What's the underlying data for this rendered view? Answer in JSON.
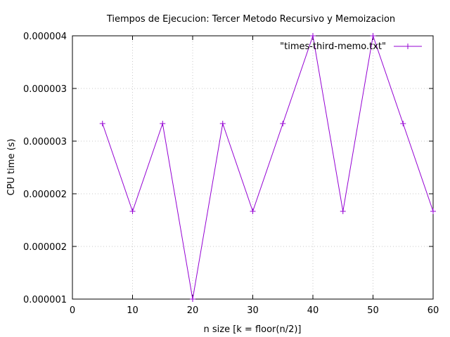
{
  "chart_data": {
    "type": "line",
    "title": "Tiempos de Ejecucion: Tercer Metodo Recursivo y Memoizacion",
    "xlabel": "n size [k = floor(n/2)]",
    "ylabel": "CPU time (s)",
    "xlim": [
      0,
      60
    ],
    "ylim": [
      1e-06,
      4e-06
    ],
    "xticks": [
      0,
      10,
      20,
      30,
      40,
      50,
      60
    ],
    "xtick_labels": [
      "0",
      "10",
      "20",
      "30",
      "40",
      "50",
      "60"
    ],
    "yticks": [
      1e-06,
      1.6e-06,
      2.2e-06,
      2.8e-06,
      3.4e-06,
      4e-06
    ],
    "ytick_labels": [
      "0.000001",
      "0.000002",
      "0.000002",
      "0.000003",
      "0.000003",
      "0.000004"
    ],
    "grid": true,
    "legend_position": "top-right",
    "series": [
      {
        "name": "\"times-third-memo.txt\"",
        "color": "#9400d3",
        "marker": "plus",
        "x": [
          5,
          10,
          15,
          20,
          25,
          30,
          35,
          40,
          45,
          50,
          55,
          60
        ],
        "y": [
          3e-06,
          2e-06,
          3e-06,
          1e-06,
          3e-06,
          2e-06,
          3e-06,
          4e-06,
          2e-06,
          4e-06,
          3e-06,
          2e-06
        ]
      }
    ]
  }
}
